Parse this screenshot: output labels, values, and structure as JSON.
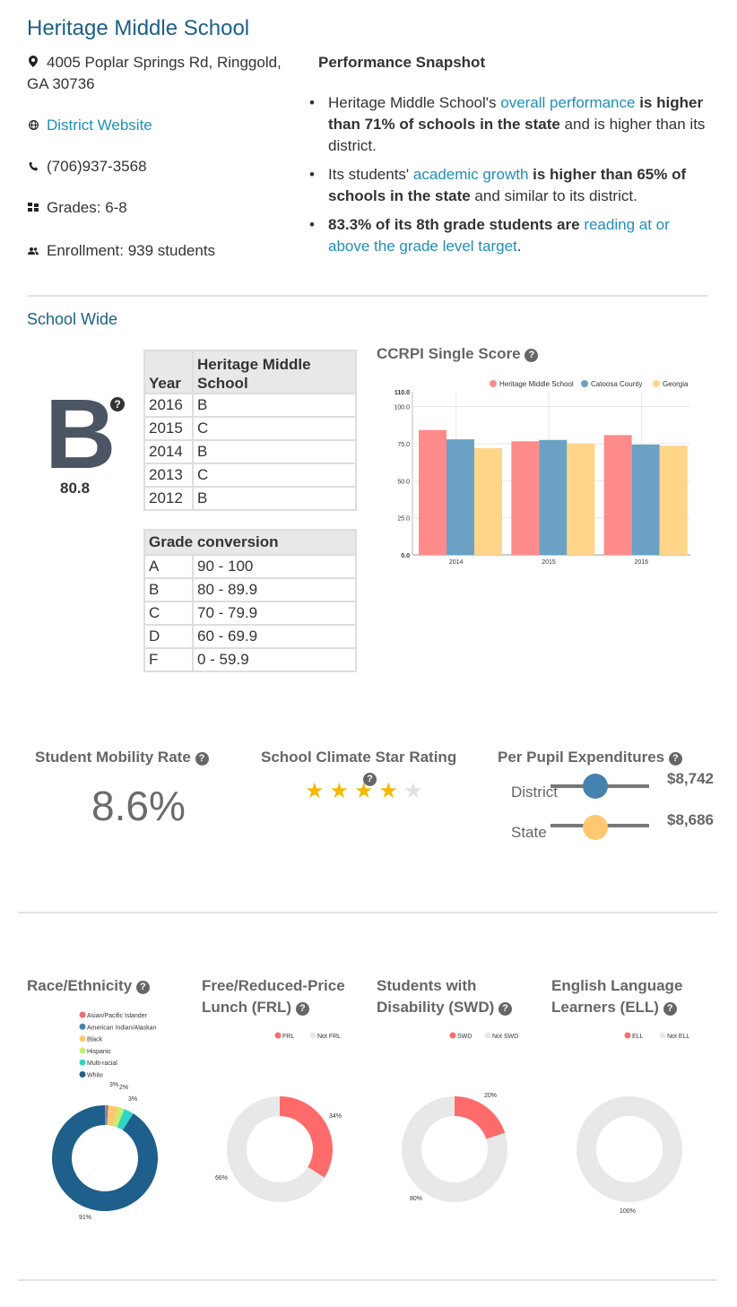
{
  "header": {
    "school_name": "Heritage Middle School",
    "address": "4005 Poplar Springs Rd, Ringgold, GA 30736",
    "address_line1": "4005 Poplar Springs Rd, Ringgold,",
    "address_line2": "GA 30736",
    "website_label": "District Website",
    "phone": "(706)937-3568",
    "grades": "Grades: 6-8",
    "enrollment": "Enrollment: 939 students"
  },
  "snapshot": {
    "title": "Performance Snapshot",
    "b1": {
      "pre": "Heritage Middle School's ",
      "link": "overall performance",
      "bold": " is higher than 71% of schools in the state",
      "post": " and is higher than its district."
    },
    "b2": {
      "pre": "Its students' ",
      "link": "academic growth",
      "bold": " is higher than 65% of schools in the state",
      "post": " and similar to its district."
    },
    "b3": {
      "bold": "83.3% of its 8th grade students are",
      "link": " reading at or above the grade level target",
      "post": "."
    }
  },
  "school_wide": {
    "title": "School Wide",
    "grade": "B",
    "score": "80.8",
    "help": "?",
    "history_headers": [
      "Year",
      "Heritage Middle School"
    ],
    "history": [
      [
        "2016",
        "B"
      ],
      [
        "2015",
        "C"
      ],
      [
        "2014",
        "B"
      ],
      [
        "2013",
        "C"
      ],
      [
        "2012",
        "B"
      ]
    ],
    "conversion_header": "Grade conversion",
    "conversion": [
      [
        "A",
        "90 - 100"
      ],
      [
        "B",
        "80 - 89.9"
      ],
      [
        "C",
        "70 - 79.9"
      ],
      [
        "D",
        "60 - 69.9"
      ],
      [
        "F",
        "0 - 59.9"
      ]
    ]
  },
  "chart_data": {
    "type": "bar",
    "title": "CCRPI Single Score",
    "categories": [
      "2014",
      "2015",
      "2016"
    ],
    "series": [
      {
        "name": "Heritage Middle School",
        "color": "#ff8a8a",
        "values": [
          84.2,
          76.6,
          80.8
        ]
      },
      {
        "name": "Catoosa County",
        "color": "#6aa1c4",
        "values": [
          77.9,
          77.5,
          74.4
        ]
      },
      {
        "name": "Georgia",
        "color": "#ffd58a",
        "values": [
          72.0,
          75.0,
          73.6
        ]
      }
    ],
    "ylim": [
      0,
      110
    ],
    "yticks": [
      "0.0",
      "25.0",
      "50.0",
      "75.0",
      "100.0",
      "110.0"
    ],
    "grid": true,
    "legend": "top-right"
  },
  "metrics": {
    "mobility_title": "Student Mobility Rate",
    "mobility_value": "8.6%",
    "climate_title": "School Climate Star Rating",
    "climate_stars": 4,
    "climate_max": 5,
    "ppe_title": "Per Pupil Expenditures",
    "ppe": [
      {
        "label": "District",
        "value": "$8,742",
        "color": "#4682b0",
        "level": 0.45
      },
      {
        "label": "State",
        "value": "$8,686",
        "color": "#ffc870",
        "level": 0.45
      }
    ]
  },
  "demographics": {
    "race": {
      "title": "Race/Ethnicity",
      "legend": [
        {
          "name": "Asian/Pacific Islander",
          "color": "#f06b6b"
        },
        {
          "name": "American Indian/Alaskan",
          "color": "#4682b0"
        },
        {
          "name": "Black",
          "color": "#ffc870"
        },
        {
          "name": "Hispanic",
          "color": "#c6ef6e"
        },
        {
          "name": "Multi-racial",
          "color": "#30d5c8"
        },
        {
          "name": "White",
          "color": "#1f5f8b"
        }
      ],
      "slices": [
        {
          "name": "Asian/Pacific Islander",
          "value": 0.5,
          "color": "#f06b6b"
        },
        {
          "name": "American Indian/Alaskan",
          "value": 0.5,
          "color": "#4682b0"
        },
        {
          "name": "Black",
          "value": 3,
          "color": "#ffc870"
        },
        {
          "name": "Hispanic",
          "value": 2,
          "color": "#c6ef6e"
        },
        {
          "name": "Multi-racial",
          "value": 3,
          "color": "#30d5c8"
        },
        {
          "name": "White",
          "value": 91,
          "color": "#1f5f8b"
        }
      ],
      "labels": [
        "3%",
        "2%",
        "3%",
        "91%"
      ]
    },
    "frl": {
      "title": "Free/Reduced-Price Lunch (FRL)",
      "title1": "Free/Reduced-Price",
      "title2": "Lunch (FRL)",
      "legend": [
        {
          "name": "FRL",
          "color": "#ff6b6b"
        },
        {
          "name": "Not FRL",
          "color": "#e8e8e8"
        }
      ],
      "values": [
        34,
        66
      ],
      "labels": [
        "34%",
        "66%"
      ]
    },
    "swd": {
      "title": "Students with Disability (SWD)",
      "title1": "Students with",
      "title2": "Disability (SWD)",
      "legend": [
        {
          "name": "SWD",
          "color": "#ff6b6b"
        },
        {
          "name": "Not SWD",
          "color": "#e8e8e8"
        }
      ],
      "values": [
        20,
        80
      ],
      "labels": [
        "20%",
        "80%"
      ]
    },
    "ell": {
      "title": "English Language Learners (ELL)",
      "title1": "English Language",
      "title2": "Learners (ELL)",
      "legend": [
        {
          "name": "ELL",
          "color": "#ff6b6b"
        },
        {
          "name": "Not ELL",
          "color": "#e8e8e8"
        }
      ],
      "values": [
        0,
        100
      ],
      "labels": [
        "100%"
      ]
    }
  }
}
